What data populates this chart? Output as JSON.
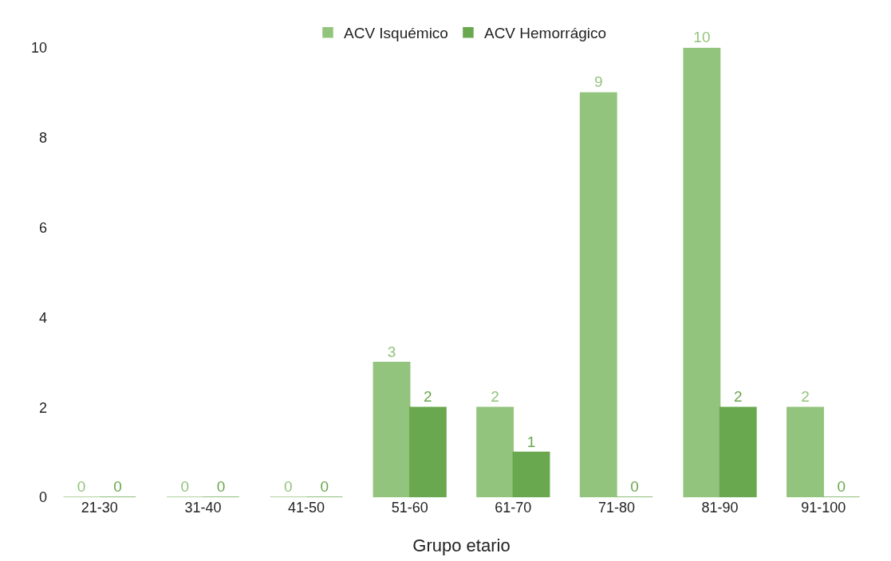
{
  "chart_data": {
    "type": "bar",
    "xlabel": "Grupo etario",
    "categories": [
      "21-30",
      "31-40",
      "41-50",
      "51-60",
      "61-70",
      "71-80",
      "81-90",
      "91-100"
    ],
    "series": [
      {
        "name": "ACV Isquémico",
        "color": "#93c47d",
        "values": [
          0,
          0,
          0,
          3,
          2,
          9,
          10,
          2
        ]
      },
      {
        "name": "ACV Hemorrágico",
        "color": "#6aa84f",
        "values": [
          0,
          0,
          0,
          2,
          1,
          0,
          2,
          0
        ]
      }
    ],
    "ylim": [
      0,
      10
    ],
    "yticks": [
      0,
      2,
      4,
      6,
      8,
      10
    ],
    "grid": false,
    "legend": "top",
    "data_labels": true
  }
}
